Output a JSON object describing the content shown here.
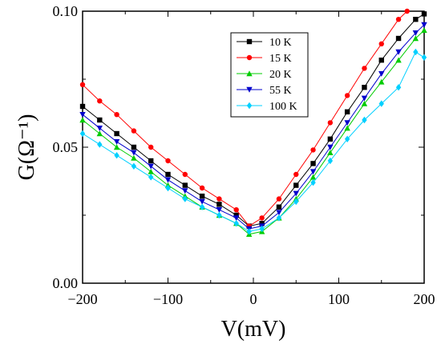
{
  "chart_data": {
    "type": "line",
    "xlabel": "V(mV)",
    "ylabel": "G(Ω⁻¹)",
    "xlim": [
      -200,
      200
    ],
    "ylim": [
      0.0,
      0.1
    ],
    "x_ticks": [
      -200,
      -100,
      0,
      100,
      200
    ],
    "x_tick_labels": [
      "−200",
      "−100",
      "0",
      "100",
      "200"
    ],
    "y_ticks": [
      0.0,
      0.05,
      0.1
    ],
    "y_tick_labels": [
      "0.00",
      "0.05",
      "0.10"
    ],
    "grid": false,
    "legend_position": "top-center",
    "series": [
      {
        "name": "10 K",
        "color": "#000000",
        "marker": "square",
        "x": [
          -200,
          -180,
          -160,
          -140,
          -120,
          -100,
          -80,
          -60,
          -40,
          -20,
          -5,
          10,
          30,
          50,
          70,
          90,
          110,
          130,
          150,
          170,
          190,
          200
        ],
        "y": [
          0.065,
          0.06,
          0.055,
          0.05,
          0.045,
          0.04,
          0.036,
          0.032,
          0.029,
          0.025,
          0.021,
          0.022,
          0.028,
          0.036,
          0.044,
          0.053,
          0.063,
          0.072,
          0.082,
          0.09,
          0.097,
          0.099
        ]
      },
      {
        "name": "15 K",
        "color": "#ff0000",
        "marker": "circle",
        "x": [
          -200,
          -180,
          -160,
          -140,
          -120,
          -100,
          -80,
          -60,
          -40,
          -20,
          -5,
          10,
          30,
          50,
          70,
          90,
          110,
          130,
          150,
          170,
          180
        ],
        "y": [
          0.073,
          0.067,
          0.062,
          0.056,
          0.05,
          0.045,
          0.04,
          0.035,
          0.031,
          0.027,
          0.021,
          0.024,
          0.031,
          0.04,
          0.049,
          0.059,
          0.069,
          0.079,
          0.088,
          0.097,
          0.1
        ]
      },
      {
        "name": "20 K",
        "color": "#00cc00",
        "marker": "triangle-up",
        "x": [
          -200,
          -180,
          -160,
          -140,
          -120,
          -100,
          -80,
          -60,
          -40,
          -20,
          -5,
          10,
          30,
          50,
          70,
          90,
          110,
          130,
          150,
          170,
          190,
          200
        ],
        "y": [
          0.06,
          0.055,
          0.05,
          0.046,
          0.041,
          0.036,
          0.032,
          0.028,
          0.025,
          0.022,
          0.018,
          0.019,
          0.024,
          0.031,
          0.039,
          0.048,
          0.057,
          0.066,
          0.074,
          0.082,
          0.09,
          0.093
        ]
      },
      {
        "name": "55 K",
        "color": "#0000cc",
        "marker": "triangle-down",
        "x": [
          -200,
          -180,
          -160,
          -140,
          -120,
          -100,
          -80,
          -60,
          -40,
          -20,
          -5,
          10,
          30,
          50,
          70,
          90,
          110,
          130,
          150,
          170,
          190,
          200
        ],
        "y": [
          0.062,
          0.057,
          0.052,
          0.048,
          0.043,
          0.038,
          0.034,
          0.03,
          0.027,
          0.024,
          0.02,
          0.021,
          0.026,
          0.033,
          0.041,
          0.05,
          0.059,
          0.068,
          0.077,
          0.085,
          0.092,
          0.095
        ]
      },
      {
        "name": "100 K",
        "color": "#00d0ff",
        "marker": "diamond",
        "x": [
          -200,
          -180,
          -160,
          -140,
          -120,
          -100,
          -80,
          -60,
          -40,
          -20,
          -5,
          10,
          30,
          50,
          70,
          90,
          110,
          130,
          150,
          170,
          190,
          200
        ],
        "y": [
          0.055,
          0.051,
          0.047,
          0.043,
          0.039,
          0.035,
          0.031,
          0.028,
          0.025,
          0.022,
          0.019,
          0.02,
          0.024,
          0.03,
          0.037,
          0.045,
          0.053,
          0.06,
          0.066,
          0.072,
          0.085,
          0.083
        ]
      }
    ]
  }
}
